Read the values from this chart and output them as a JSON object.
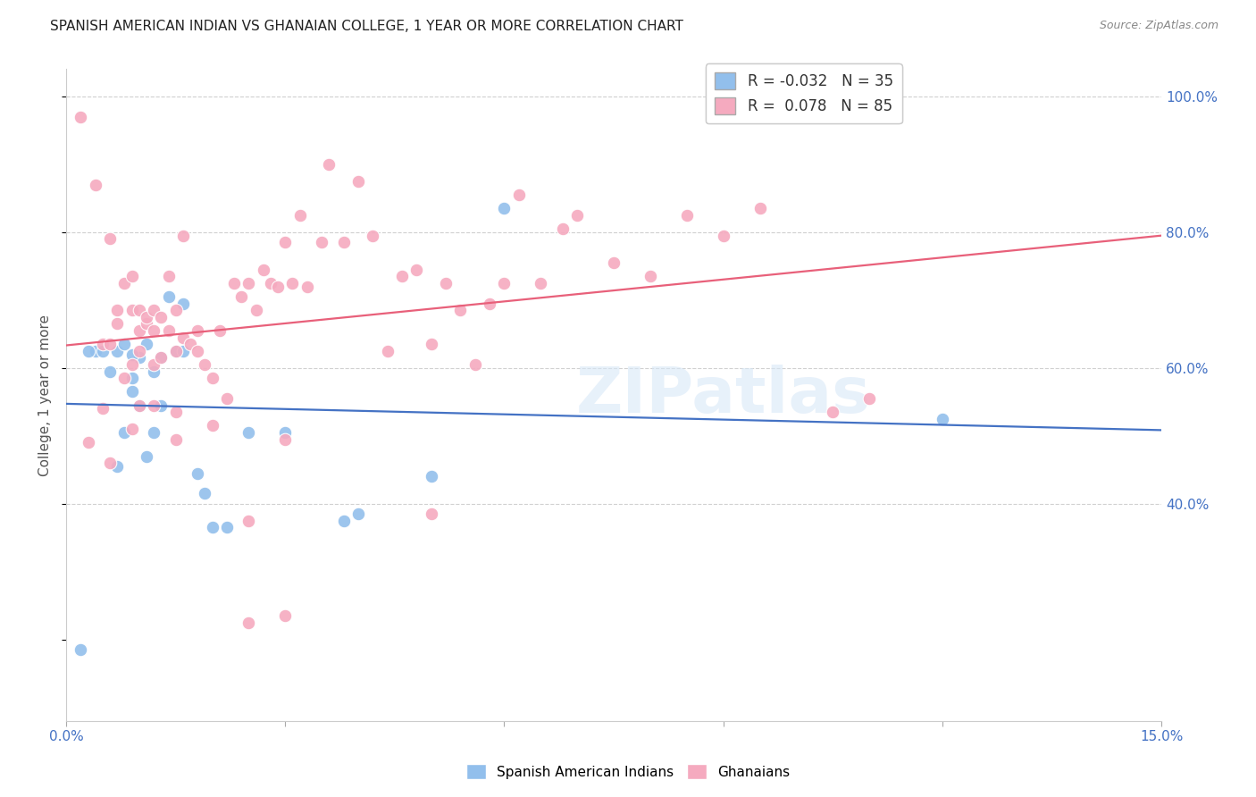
{
  "title": "SPANISH AMERICAN INDIAN VS GHANAIAN COLLEGE, 1 YEAR OR MORE CORRELATION CHART",
  "source": "Source: ZipAtlas.com",
  "ylabel": "College, 1 year or more",
  "xlim": [
    0.0,
    0.15
  ],
  "ylim": [
    0.08,
    1.04
  ],
  "blue_R": -0.032,
  "blue_N": 35,
  "pink_R": 0.078,
  "pink_N": 85,
  "blue_color": "#92bfec",
  "pink_color": "#f5aabf",
  "blue_line_color": "#4472c4",
  "pink_line_color": "#e8607a",
  "blue_x": [
    0.004,
    0.006,
    0.007,
    0.008,
    0.008,
    0.009,
    0.009,
    0.01,
    0.01,
    0.011,
    0.011,
    0.012,
    0.012,
    0.013,
    0.013,
    0.014,
    0.015,
    0.016,
    0.016,
    0.018,
    0.019,
    0.02,
    0.022,
    0.025,
    0.03,
    0.038,
    0.04,
    0.05,
    0.06,
    0.12,
    0.003,
    0.005,
    0.007,
    0.009,
    0.002
  ],
  "blue_y": [
    0.625,
    0.595,
    0.625,
    0.505,
    0.635,
    0.565,
    0.585,
    0.615,
    0.545,
    0.635,
    0.47,
    0.505,
    0.595,
    0.545,
    0.615,
    0.705,
    0.625,
    0.695,
    0.625,
    0.445,
    0.415,
    0.365,
    0.365,
    0.505,
    0.505,
    0.375,
    0.385,
    0.44,
    0.835,
    0.525,
    0.625,
    0.625,
    0.455,
    0.62,
    0.185
  ],
  "pink_x": [
    0.002,
    0.004,
    0.005,
    0.006,
    0.006,
    0.007,
    0.007,
    0.008,
    0.008,
    0.009,
    0.009,
    0.009,
    0.01,
    0.01,
    0.01,
    0.011,
    0.011,
    0.012,
    0.012,
    0.012,
    0.013,
    0.013,
    0.014,
    0.014,
    0.015,
    0.015,
    0.016,
    0.016,
    0.017,
    0.018,
    0.018,
    0.019,
    0.02,
    0.021,
    0.022,
    0.023,
    0.024,
    0.025,
    0.026,
    0.027,
    0.028,
    0.029,
    0.03,
    0.031,
    0.032,
    0.033,
    0.035,
    0.036,
    0.038,
    0.04,
    0.042,
    0.044,
    0.046,
    0.048,
    0.05,
    0.052,
    0.054,
    0.056,
    0.058,
    0.06,
    0.062,
    0.065,
    0.068,
    0.07,
    0.075,
    0.08,
    0.085,
    0.09,
    0.095,
    0.005,
    0.01,
    0.015,
    0.02,
    0.025,
    0.03,
    0.025,
    0.03,
    0.05,
    0.105,
    0.11,
    0.003,
    0.006,
    0.009,
    0.012,
    0.015
  ],
  "pink_y": [
    0.97,
    0.87,
    0.635,
    0.635,
    0.79,
    0.665,
    0.685,
    0.585,
    0.725,
    0.605,
    0.685,
    0.735,
    0.625,
    0.655,
    0.685,
    0.665,
    0.675,
    0.605,
    0.655,
    0.685,
    0.615,
    0.675,
    0.655,
    0.735,
    0.625,
    0.685,
    0.645,
    0.795,
    0.635,
    0.625,
    0.655,
    0.605,
    0.585,
    0.655,
    0.555,
    0.725,
    0.705,
    0.725,
    0.685,
    0.745,
    0.725,
    0.72,
    0.785,
    0.725,
    0.825,
    0.72,
    0.785,
    0.9,
    0.785,
    0.875,
    0.795,
    0.625,
    0.735,
    0.745,
    0.635,
    0.725,
    0.685,
    0.605,
    0.695,
    0.725,
    0.855,
    0.725,
    0.805,
    0.825,
    0.755,
    0.735,
    0.825,
    0.795,
    0.835,
    0.54,
    0.545,
    0.535,
    0.515,
    0.375,
    0.495,
    0.225,
    0.235,
    0.385,
    0.535,
    0.555,
    0.49,
    0.46,
    0.51,
    0.545,
    0.495
  ],
  "watermark_text": "ZIPatlas",
  "background_color": "#ffffff",
  "grid_color": "#d0d0d0",
  "right_ytick_color": "#4472c4",
  "xtick_color": "#4472c4"
}
